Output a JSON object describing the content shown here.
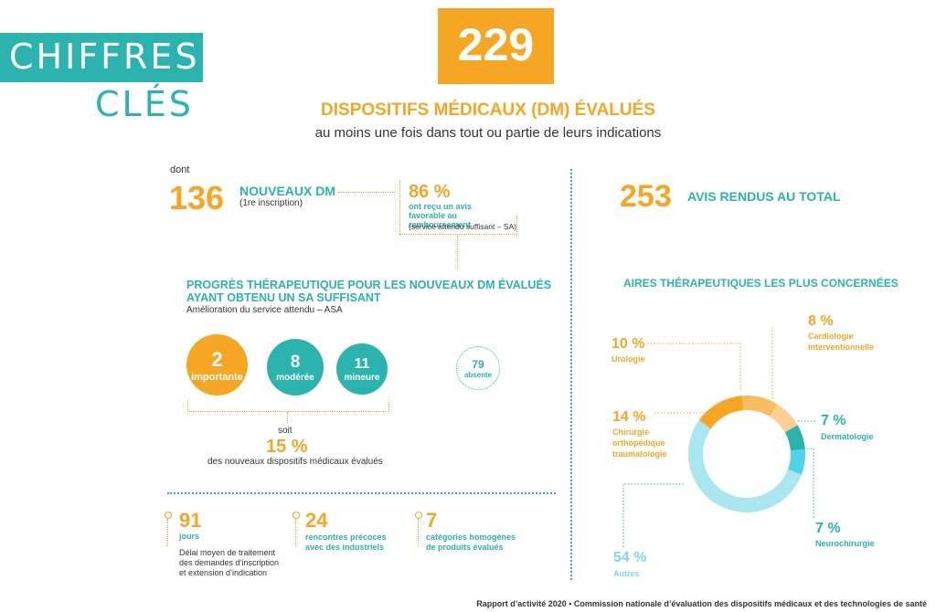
{
  "title": {
    "line1": "CHIFFRES",
    "line2": "CLÉS"
  },
  "headline": {
    "number": "229",
    "label": "DISPOSITIFS MÉDICAUX (DM) ÉVALUÉS",
    "sub": "au moins une fois dans tout ou partie de leurs indications"
  },
  "nouveaux": {
    "dont": "dont",
    "number": "136",
    "label": "NOUVEAUX DM",
    "note": "(1re inscription)"
  },
  "favorable": {
    "percent": "86 %",
    "label": "ont reçu un avis favorable au  remboursement",
    "note": "(service attendu suffisant – SA)"
  },
  "progres": {
    "title_line1": "PROGRÈS THÉRAPEUTIQUE POUR LES NOUVEAUX DM ÉVALUÉS",
    "title_line2": "AYANT OBTENU UN SA SUFFISANT",
    "sub": "Amélioration du service attendu – ASA",
    "circles": [
      {
        "value": "2",
        "label": "importante"
      },
      {
        "value": "8",
        "label": "modérée"
      },
      {
        "value": "11",
        "label": "mineure"
      },
      {
        "value": "79",
        "label": "absente"
      }
    ],
    "soit": "soit",
    "percent": "15 %",
    "percent_label": "des nouveaux dispositifs médicaux évalués"
  },
  "avis": {
    "number": "253",
    "label": "AVIS RENDUS AU TOTAL"
  },
  "aires": {
    "title": "AIRES THÉRAPEUTIQUES LES PLUS CONCERNÉES",
    "labels": {
      "cardio": {
        "pct": "8 %",
        "name1": "Cardiologie",
        "name2": "interventionnelle"
      },
      "uro": {
        "pct": "10 %",
        "name1": "Urologie"
      },
      "ortho": {
        "pct": "14 %",
        "name1": "Chirurgie",
        "name2": "orthopédique",
        "name3": "traumatologie"
      },
      "derma": {
        "pct": "7 %",
        "name1": "Dermatologie"
      },
      "neuro": {
        "pct": "7 %",
        "name1": "Neurochirurgie"
      },
      "autres": {
        "pct": "54 %",
        "name1": "Autres"
      }
    }
  },
  "chart_data": {
    "type": "pie",
    "categories": [
      "Cardiologie interventionnelle",
      "Dermatologie",
      "Neurochirurgie",
      "Autres",
      "Chirurgie orthopédique traumatologie",
      "Urologie"
    ],
    "values": [
      8,
      7,
      7,
      54,
      14,
      10
    ],
    "colors": [
      "#fbd193",
      "#2bb3ae",
      "#4ed3e8",
      "#a8e6f0",
      "#f5a623",
      "#f7bd5e"
    ]
  },
  "stats": [
    {
      "number": "91",
      "label": "jours",
      "desc1": "Délai moyen de traitement",
      "desc2": "des demandes d’inscription",
      "desc3": "et extension d’indication"
    },
    {
      "number": "24",
      "label1": "rencontres précoces",
      "label2": "avec des industriels"
    },
    {
      "number": "7",
      "label1": "catégories homogènes",
      "label2": "de produits évalués"
    }
  ],
  "footer": "Rapport d’activité 2020 • Commission nationale d’évaluation des dispositifs médicaux et des technologies de santé"
}
